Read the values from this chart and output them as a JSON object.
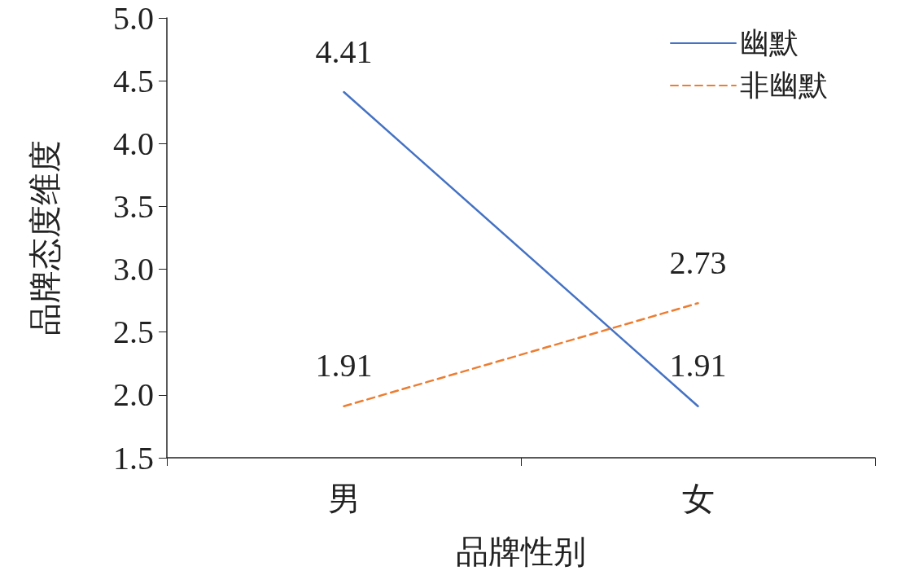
{
  "chart_data": {
    "type": "line",
    "xlabel": "品牌性别",
    "ylabel": "品牌态度维度",
    "categories": [
      "男",
      "女"
    ],
    "series": [
      {
        "name": "幽默",
        "color": "#4472c4",
        "values": [
          4.41,
          1.91
        ],
        "line_style": "solid"
      },
      {
        "name": "非幽默",
        "color": "#ed7d31",
        "values": [
          1.91,
          2.73
        ],
        "line_style": "dashed"
      }
    ],
    "ylim": [
      1.5,
      5.0
    ],
    "yticks": [
      {
        "value": 1.5,
        "label": "1.5"
      },
      {
        "value": 2,
        "label": "2.0"
      },
      {
        "value": 2.5,
        "label": "2.5"
      },
      {
        "value": 3,
        "label": "3.0"
      },
      {
        "value": 3.5,
        "label": "3.5"
      },
      {
        "value": 4,
        "label": "4.0"
      },
      {
        "value": 4.5,
        "label": "4.5"
      },
      {
        "value": 5,
        "label": "5.0"
      }
    ],
    "grid": false,
    "legend": "top right",
    "data_labels": true
  }
}
